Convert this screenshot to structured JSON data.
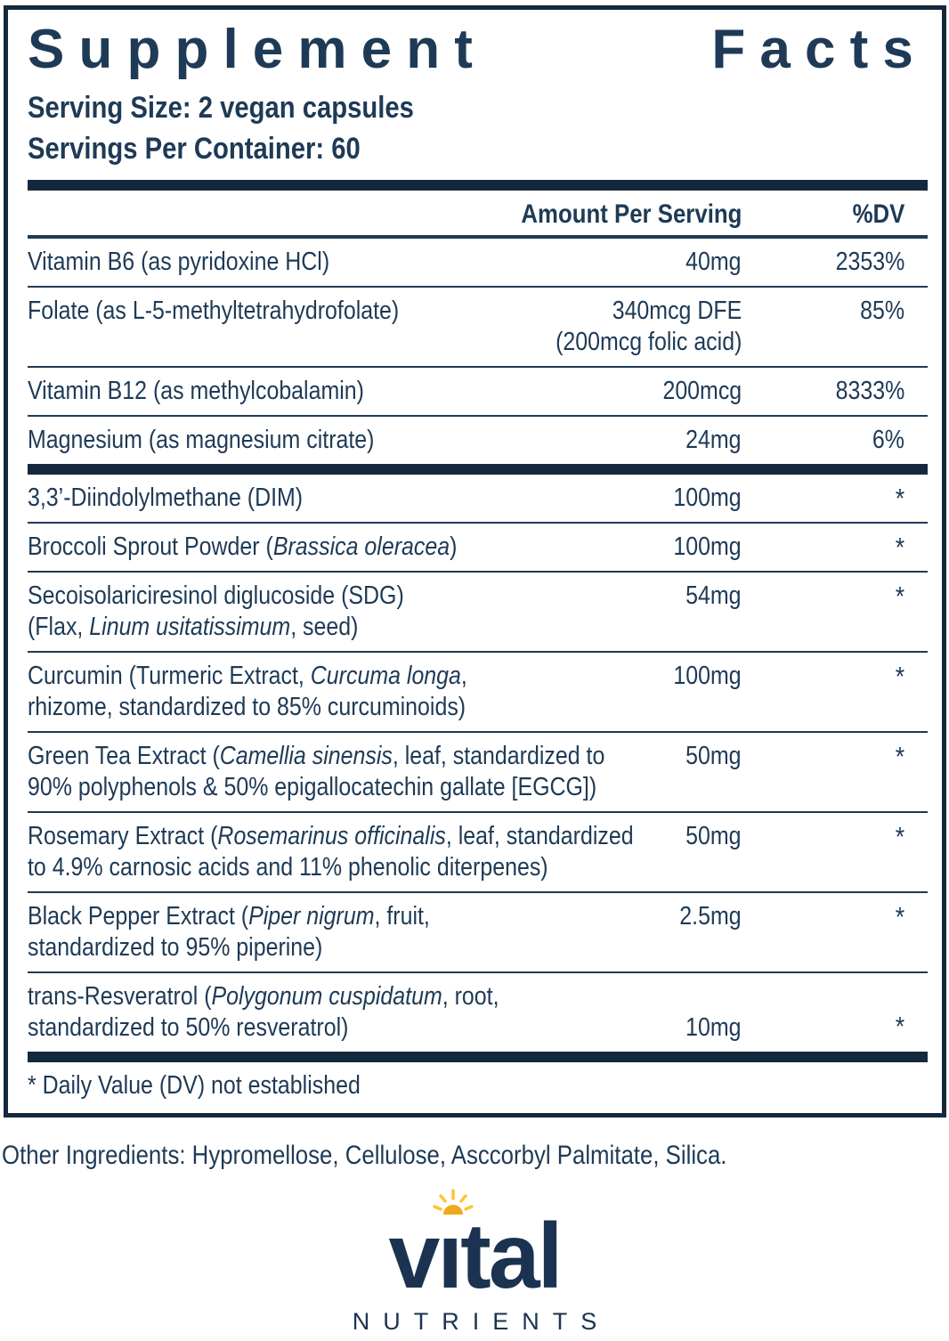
{
  "panel": {
    "title": "Supplement Facts",
    "title_words": [
      "Supplement",
      "Facts"
    ],
    "serving_size": "Serving Size: 2 vegan capsules",
    "servings_per_container": "Servings Per Container: 60",
    "columns": {
      "amount": "Amount Per Serving",
      "dv": "%DV"
    },
    "sections": [
      {
        "rows": [
          {
            "name": [
              [
                {
                  "t": "Vitamin B6 (as pyridoxine HCl)"
                }
              ]
            ],
            "amount": [
              "40mg"
            ],
            "dv": "2353%"
          },
          {
            "name": [
              [
                {
                  "t": "Folate (as L-5-methyltetrahydrofolate)"
                }
              ]
            ],
            "amount": [
              "340mcg DFE",
              "(200mcg folic acid)"
            ],
            "dv": "85%"
          },
          {
            "name": [
              [
                {
                  "t": "Vitamin B12 (as methylcobalamin)"
                }
              ]
            ],
            "amount": [
              "200mcg"
            ],
            "dv": "8333%"
          },
          {
            "name": [
              [
                {
                  "t": "Magnesium (as magnesium citrate)"
                }
              ]
            ],
            "amount": [
              "24mg"
            ],
            "dv": "6%"
          }
        ]
      },
      {
        "rows": [
          {
            "name": [
              [
                {
                  "t": "3,3’-Diindolylmethane (DIM)"
                }
              ]
            ],
            "amount": [
              "100mg"
            ],
            "dv": "*"
          },
          {
            "name": [
              [
                {
                  "t": "Broccoli Sprout Powder ("
                },
                {
                  "t": "Brassica oleracea",
                  "i": true
                },
                {
                  "t": ")"
                }
              ]
            ],
            "amount": [
              "100mg"
            ],
            "dv": "*"
          },
          {
            "name": [
              [
                {
                  "t": "Secoisolariciresinol diglucoside (SDG)"
                }
              ],
              [
                {
                  "t": "(Flax, "
                },
                {
                  "t": "Linum usitatissimum",
                  "i": true
                },
                {
                  "t": ", seed)"
                }
              ]
            ],
            "amount": [
              "54mg"
            ],
            "dv": "*"
          },
          {
            "name": [
              [
                {
                  "t": "Curcumin (Turmeric Extract, "
                },
                {
                  "t": "Curcuma longa",
                  "i": true
                },
                {
                  "t": ","
                }
              ],
              [
                {
                  "t": "rhizome, standardized to 85% curcuminoids)"
                }
              ]
            ],
            "amount": [
              "100mg"
            ],
            "dv": "*"
          },
          {
            "name": [
              [
                {
                  "t": "Green Tea Extract ("
                },
                {
                  "t": "Camellia sinensis",
                  "i": true
                },
                {
                  "t": ", leaf, standardized to"
                }
              ],
              [
                {
                  "t": "90% polyphenols & 50% epigallocatechin gallate [EGCG])"
                }
              ]
            ],
            "amount": [
              "50mg"
            ],
            "dv": "*"
          },
          {
            "name": [
              [
                {
                  "t": "Rosemary Extract ("
                },
                {
                  "t": "Rosemarinus officinalis",
                  "i": true
                },
                {
                  "t": ", leaf, standardized"
                }
              ],
              [
                {
                  "t": "to 4.9% carnosic acids and 11% phenolic diterpenes)"
                }
              ]
            ],
            "amount": [
              "50mg"
            ],
            "dv": "*"
          },
          {
            "name": [
              [
                {
                  "t": "Black Pepper Extract ("
                },
                {
                  "t": "Piper nigrum",
                  "i": true
                },
                {
                  "t": ", fruit,"
                }
              ],
              [
                {
                  "t": "standardized to 95% piperine)"
                }
              ]
            ],
            "amount": [
              "2.5mg"
            ],
            "dv": "*"
          },
          {
            "name": [
              [
                {
                  "t": "trans-Resveratrol ("
                },
                {
                  "t": "Polygonum cuspidatum",
                  "i": true
                },
                {
                  "t": ", root,"
                }
              ],
              [
                {
                  "t": "standardized to 50% resveratrol)"
                }
              ]
            ],
            "amount": [
              "10mg"
            ],
            "dv": "*",
            "valign": "bottom"
          }
        ]
      }
    ],
    "footnote": "* Daily Value (DV) not established"
  },
  "other_ingredients": "Other Ingredients: Hypromellose, Cellulose, Asccorbyl Palmitate, Silica.",
  "logo": {
    "brand": "vital",
    "brand_display": "vıtal",
    "subtext": "NUTRIENTS",
    "icon": "sun-icon"
  },
  "colors": {
    "navy_text": "#1e3a56",
    "bar_navy": "#14293d",
    "logo_navy": "#1b3350",
    "sun_gold": "#f0a81c",
    "ray_yellow": "#fdc52e"
  }
}
